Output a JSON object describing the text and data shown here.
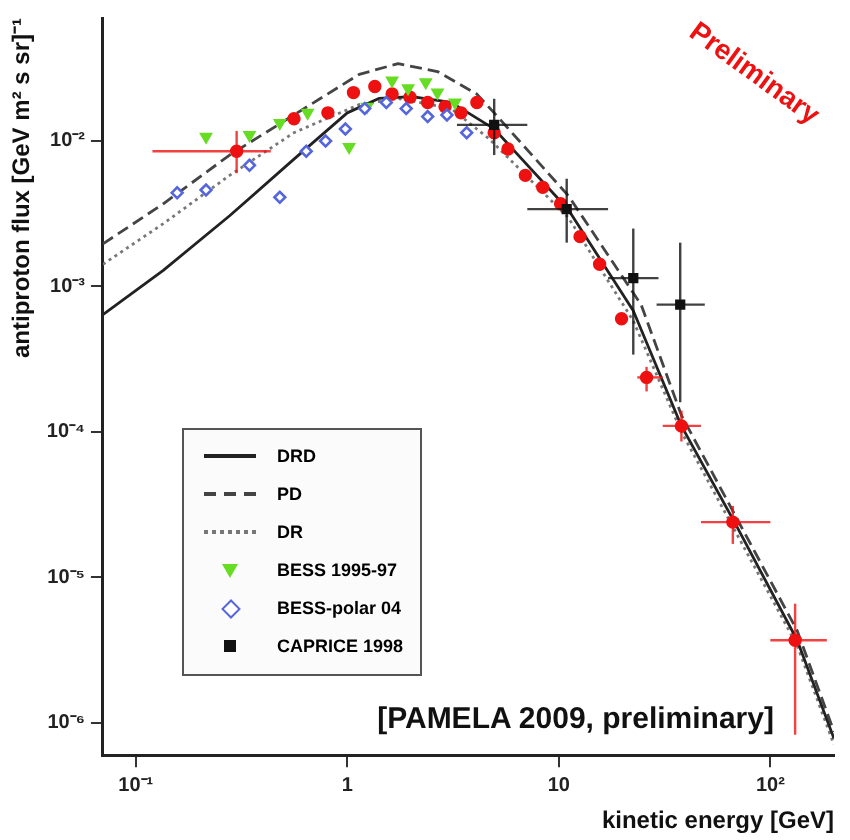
{
  "chart_data": {
    "type": "scatter",
    "xlabel": "kinetic energy [GeV]",
    "ylabel": "antiproton flux [GeV m² s sr]⁻¹",
    "log": "xy",
    "grid": false,
    "legend": "bottom left",
    "xlim": [
      0.07,
      200
    ],
    "ylim": [
      6e-07,
      0.07
    ],
    "xticks": [
      {
        "value": 0.1,
        "label": "10⁻¹"
      },
      1,
      10,
      {
        "value": 100,
        "label": "10²"
      }
    ],
    "yticks": [
      {
        "value": 1e-06,
        "label": "10⁻⁶"
      },
      {
        "value": 1e-05,
        "label": "10⁻⁵"
      },
      {
        "value": 0.0001,
        "label": "10⁻⁴"
      },
      {
        "value": 0.001,
        "label": "10⁻³"
      },
      {
        "value": 0.01,
        "label": "10⁻²"
      }
    ],
    "annotations": [
      "[PAMELA 2009, preliminary]",
      "Preliminary"
    ],
    "series": [
      {
        "type": "line",
        "name": "DRD",
        "color": "#222222",
        "line_style": "solid",
        "marker": "none",
        "x": [
          0.07,
          0.135,
          0.278,
          0.56,
          1.0,
          1.41,
          2.02,
          3.1,
          4.95,
          11.1,
          22.5,
          38,
          68,
          134,
          200
        ],
        "values": [
          0.00064,
          0.00129,
          0.00306,
          0.0075,
          0.0156,
          0.0196,
          0.0202,
          0.0184,
          0.0121,
          0.00337,
          0.00068,
          0.00011,
          2.37e-05,
          3.7e-06,
          7.8e-07
        ]
      },
      {
        "type": "line",
        "name": "PD",
        "color": "#444444",
        "line_style": "dashed",
        "marker": "none",
        "x": [
          0.07,
          0.135,
          0.278,
          0.56,
          1.14,
          1.74,
          2.67,
          4.1,
          5.05,
          11.1,
          24.5,
          38,
          134,
          200
        ],
        "values": [
          0.00196,
          0.0037,
          0.008,
          0.0151,
          0.0287,
          0.034,
          0.03,
          0.021,
          0.0151,
          0.0042,
          0.00075,
          0.00013,
          4.3e-06,
          8.7e-07
        ]
      },
      {
        "type": "line",
        "name": "DR",
        "color": "#777777",
        "line_style": "dotted",
        "marker": "none",
        "x": [
          0.07,
          0.135,
          0.278,
          0.56,
          1.14,
          1.74,
          3.1,
          4.7,
          11.1,
          22.5,
          38,
          134,
          200
        ],
        "values": [
          0.00142,
          0.0027,
          0.0058,
          0.0114,
          0.0178,
          0.0196,
          0.0167,
          0.0103,
          0.00297,
          0.00058,
          0.0001,
          3.4e-06,
          7.1e-07
        ]
      },
      {
        "name": "BESS 1995-97",
        "color": "#66dd22",
        "marker": "triangle",
        "x": [
          0.215,
          0.345,
          0.48,
          0.65,
          1.02,
          1.24,
          1.63,
          1.94,
          2.35,
          2.67,
          3.23
        ],
        "values": [
          0.0107,
          0.011,
          0.0133,
          0.0156,
          0.0091,
          0.0172,
          0.026,
          0.023,
          0.0253,
          0.0215,
          0.0184
        ]
      },
      {
        "name": "BESS-polar 04",
        "color": "#5566dd",
        "marker": "diamond",
        "x": [
          0.157,
          0.215,
          0.345,
          0.48,
          0.64,
          0.79,
          0.98,
          1.21,
          1.53,
          1.9,
          2.4,
          2.96,
          3.67
        ],
        "values": [
          0.0044,
          0.0046,
          0.0068,
          0.0041,
          0.0085,
          0.01,
          0.0121,
          0.0167,
          0.0184,
          0.0167,
          0.0147,
          0.0151,
          0.0114
        ]
      },
      {
        "name": "CAPRICE 1998",
        "color": "#111111",
        "marker": "square",
        "x": [
          4.95,
          10.9,
          22.5,
          37.5
        ],
        "values": [
          0.0129,
          0.0034,
          0.00114,
          0.00075
        ],
        "errors": [
          [
            0.008,
            0.0195
          ],
          [
            0.002,
            0.0055
          ],
          [
            0.00034,
            0.0025
          ],
          [
            0.00016,
            0.002
          ]
        ],
        "xerrors": [
          [
            3.3,
            7.1
          ],
          [
            7.1,
            17.1
          ],
          [
            17.1,
            29.6
          ],
          [
            29,
            49
          ]
        ]
      },
      {
        "color": "#ee1111",
        "marker": "circle",
        "x": [
          0.3,
          0.56,
          0.81,
          1.07,
          1.35,
          1.63,
          1.98,
          2.4,
          2.9,
          3.45,
          4.1,
          4.95,
          5.75,
          6.95,
          8.4,
          10.2,
          12.6,
          15.6,
          19.8,
          26,
          38,
          66.5,
          131
        ],
        "values": [
          0.0085,
          0.0142,
          0.0156,
          0.0215,
          0.0237,
          0.021,
          0.02,
          0.0184,
          0.0172,
          0.0156,
          0.0184,
          0.0114,
          0.0088,
          0.0058,
          0.0048,
          0.0037,
          0.0022,
          0.00142,
          0.0006,
          0.000237,
          0.00011,
          2.4e-05,
          3.7e-06
        ],
        "errors": [
          [
            0.006,
            0.0117
          ],
          null,
          null,
          null,
          null,
          null,
          null,
          null,
          null,
          null,
          null,
          null,
          null,
          null,
          null,
          null,
          null,
          null,
          null,
          [
            0.00019,
            0.00028
          ],
          [
            8.6e-05,
            0.00014
          ],
          [
            1.7e-05,
            3.1e-05
          ],
          [
            8.3e-07,
            6.6e-06
          ]
        ],
        "xerrors": [
          [
            0.12,
            0.435
          ],
          null,
          null,
          null,
          null,
          null,
          null,
          null,
          null,
          null,
          null,
          null,
          null,
          null,
          null,
          null,
          null,
          null,
          null,
          [
            23.5,
            31
          ],
          [
            31,
            47
          ],
          [
            47,
            100
          ],
          [
            100,
            185
          ]
        ]
      }
    ]
  }
}
